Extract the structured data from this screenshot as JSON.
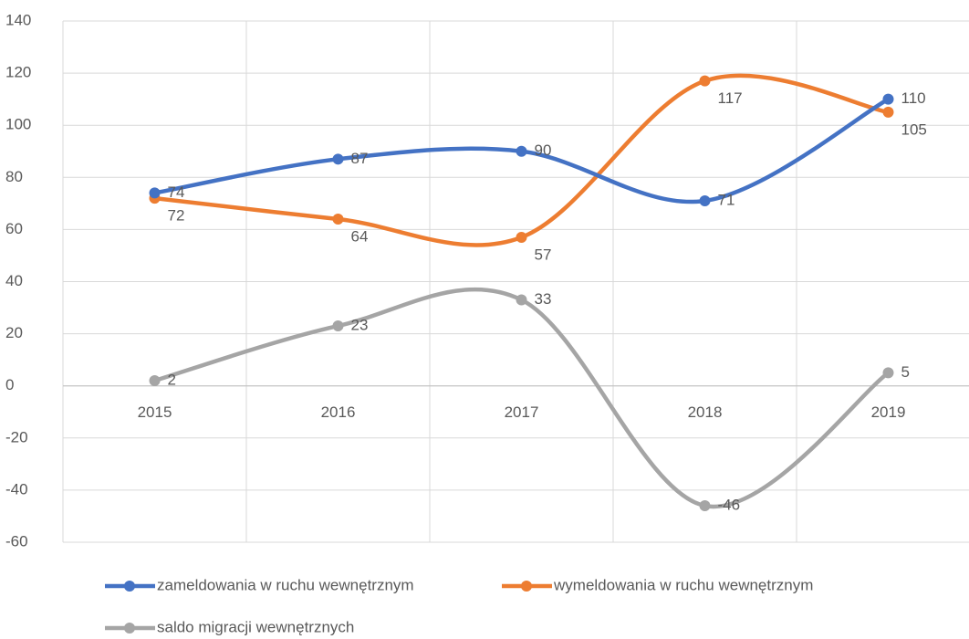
{
  "chart_data": {
    "type": "line",
    "categories": [
      "2015",
      "2016",
      "2017",
      "2018",
      "2019"
    ],
    "series": [
      {
        "name": "zameldowania w ruchu wewnętrznym",
        "color": "#4472c4",
        "values": [
          74,
          87,
          90,
          71,
          110
        ]
      },
      {
        "name": "wymeldowania w ruchu wewnętrznym",
        "color": "#ed7d31",
        "values": [
          72,
          64,
          57,
          117,
          105
        ]
      },
      {
        "name": "saldo migracji wewnętrznych",
        "color": "#a5a5a5",
        "values": [
          2,
          23,
          33,
          -46,
          5
        ]
      }
    ],
    "ylim": [
      -60,
      140
    ],
    "yticks": [
      -60,
      -40,
      -20,
      0,
      20,
      40,
      60,
      80,
      100,
      120,
      140
    ],
    "grid": true,
    "smooth": true,
    "legend": "bottom"
  }
}
